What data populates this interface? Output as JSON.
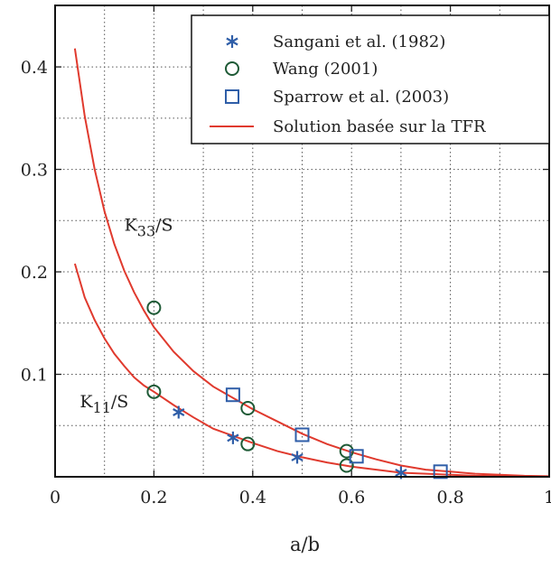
{
  "chart_data": {
    "type": "scatter",
    "title": "",
    "xlabel": "a/b",
    "ylabel": "",
    "xlim": [
      0,
      1
    ],
    "ylim": [
      0,
      0.46
    ],
    "grid": true,
    "legend_position": "top-right",
    "x_ticks": [
      0,
      0.2,
      0.4,
      0.6,
      0.8,
      1
    ],
    "x_tick_labels": [
      "0",
      "0.2",
      "0.4",
      "0.6",
      "0.8",
      "1"
    ],
    "y_ticks": [
      0.1,
      0.2,
      0.3,
      0.4
    ],
    "y_tick_labels": [
      "0.1",
      "0.2",
      "0.3",
      "0.4"
    ],
    "annotations": [
      {
        "text": "K33/S",
        "main": "K",
        "sub": "33",
        "rest": "/S",
        "x": 0.14,
        "y": 0.24
      },
      {
        "text": "K11/S",
        "main": "K",
        "sub": "11",
        "rest": "/S",
        "x": 0.05,
        "y": 0.068
      }
    ],
    "series": [
      {
        "name": "Sangani et al. (1982)",
        "marker": "asterisk",
        "color": "#2f5ea8",
        "points": [
          [
            0.25,
            0.063
          ],
          [
            0.36,
            0.038
          ],
          [
            0.49,
            0.019
          ],
          [
            0.7,
            0.004
          ]
        ]
      },
      {
        "name": "Wang (2001)",
        "marker": "circle",
        "color": "#1e5a36",
        "points": [
          [
            0.2,
            0.165
          ],
          [
            0.2,
            0.083
          ],
          [
            0.39,
            0.067
          ],
          [
            0.39,
            0.032
          ],
          [
            0.59,
            0.025
          ],
          [
            0.59,
            0.011
          ]
        ]
      },
      {
        "name": "Sparrow et al. (2003)",
        "marker": "square",
        "color": "#2f5ea8",
        "points": [
          [
            0.36,
            0.08
          ],
          [
            0.5,
            0.041
          ],
          [
            0.61,
            0.02
          ],
          [
            0.78,
            0.005
          ]
        ]
      },
      {
        "name": "Solution basée sur la TFR",
        "marker": "line",
        "color": "#e03a2e",
        "curves": [
          {
            "id": "K33/S",
            "x": [
              0.04,
              0.06,
              0.08,
              0.1,
              0.12,
              0.14,
              0.16,
              0.18,
              0.2,
              0.24,
              0.28,
              0.32,
              0.36,
              0.4,
              0.45,
              0.5,
              0.55,
              0.6,
              0.65,
              0.7,
              0.75,
              0.8,
              0.85,
              0.9,
              0.95,
              1.0
            ],
            "y": [
              0.418,
              0.352,
              0.3,
              0.259,
              0.227,
              0.201,
              0.18,
              0.162,
              0.146,
              0.122,
              0.103,
              0.088,
              0.077,
              0.066,
              0.054,
              0.042,
              0.032,
              0.024,
              0.017,
              0.011,
              0.007,
              0.005,
              0.003,
              0.002,
              0.001,
              0.0005
            ]
          },
          {
            "id": "K11/S",
            "x": [
              0.04,
              0.06,
              0.08,
              0.1,
              0.12,
              0.14,
              0.16,
              0.18,
              0.2,
              0.24,
              0.28,
              0.32,
              0.36,
              0.4,
              0.45,
              0.5,
              0.55,
              0.6,
              0.65,
              0.7,
              0.75,
              0.8,
              0.85,
              0.9,
              0.95,
              1.0
            ],
            "y": [
              0.208,
              0.175,
              0.153,
              0.135,
              0.12,
              0.108,
              0.097,
              0.089,
              0.083,
              0.07,
              0.058,
              0.047,
              0.04,
              0.033,
              0.025,
              0.019,
              0.014,
              0.01,
              0.007,
              0.004,
              0.003,
              0.002,
              0.001,
              0.0007,
              0.0003,
              0.0001
            ]
          }
        ]
      }
    ]
  }
}
